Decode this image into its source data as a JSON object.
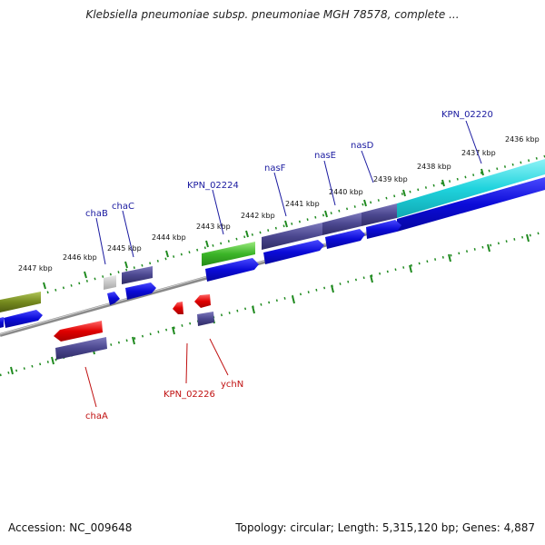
{
  "header": {
    "title": "Klebsiella pneumoniae subsp. pneumoniae MGH 78578, complete ..."
  },
  "footer": {
    "accession": "Accession: NC_009648",
    "topology": "Topology: circular; Length: 5,315,120 bp; Genes: 4,887"
  },
  "colors": {
    "backbone": "#8a8a8a",
    "ruler_dots": "#1f8a1f",
    "forward_cds": "#0b0bd8",
    "reverse_cds": "#e00000",
    "feature_slate": "#4b478f",
    "feature_cyan": "#1fd3dd",
    "feature_green": "#3cb528",
    "feature_olive": "#758a1e",
    "feature_gray": "#b8b8b8",
    "forward_label": "#1a1aa0",
    "reverse_label": "#c01010"
  },
  "scale": {
    "unit": "kbp",
    "tick_labels": [
      {
        "text": "2436 kbp"
      },
      {
        "text": "2437 kbp"
      },
      {
        "text": "2438 kbp"
      },
      {
        "text": "2439 kbp"
      },
      {
        "text": "2440 kbp"
      },
      {
        "text": "2441 kbp"
      },
      {
        "text": "2442 kbp"
      },
      {
        "text": "2443 kbp"
      },
      {
        "text": "2444 kbp"
      },
      {
        "text": "2445 kbp"
      },
      {
        "text": "2446 kbp"
      },
      {
        "text": "2447 kbp"
      }
    ]
  },
  "genes": {
    "forward": [
      {
        "name": "KPN_02220",
        "color": "cyan"
      },
      {
        "name": "nasD",
        "color": "slate"
      },
      {
        "name": "nasE",
        "color": "slate"
      },
      {
        "name": "nasF",
        "color": "slate"
      },
      {
        "name": "KPN_02224",
        "color": "green"
      },
      {
        "name": "chaC",
        "color": "slate"
      },
      {
        "name": "chaB",
        "color": "gray"
      }
    ],
    "reverse": [
      {
        "name": "ychN",
        "color": "slate"
      },
      {
        "name": "KPN_02226",
        "color": "red"
      },
      {
        "name": "chaA",
        "color": "red"
      }
    ]
  }
}
